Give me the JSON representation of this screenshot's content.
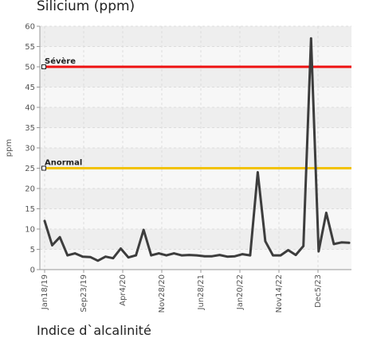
{
  "chart_data": {
    "type": "line",
    "title": "Silicium (ppm)",
    "ylabel": "ppm",
    "xlabel": "",
    "ylim": [
      0,
      60
    ],
    "yticks": [
      0,
      5,
      10,
      15,
      20,
      25,
      30,
      35,
      40,
      45,
      50,
      55,
      60
    ],
    "x_tick_labels": [
      "Jan18/19",
      "Sep23/19",
      "Apr4/20",
      "Nov28/20",
      "Jun28/21",
      "Jan20/22",
      "Nov14/22",
      "Dec5/23"
    ],
    "grid": true,
    "thresholds": [
      {
        "label": "Sévère",
        "value": 50,
        "color": "#ee1111"
      },
      {
        "label": "Anormal",
        "value": 25,
        "color": "#f2c200"
      }
    ],
    "series": [
      {
        "color": "#3d3d3d",
        "values": [
          12,
          6,
          8,
          3.5,
          4,
          3.2,
          3.1,
          2.2,
          3.2,
          2.8,
          5.2,
          3,
          3.5,
          9.8,
          3.5,
          4,
          3.5,
          4,
          3.5,
          3.6,
          3.5,
          3.3,
          3.3,
          3.6,
          3.2,
          3.3,
          3.8,
          3.5,
          24,
          7,
          3.5,
          3.5,
          4.8,
          3.6,
          5.8,
          57,
          4.5,
          14,
          6.3,
          6.7,
          6.6
        ]
      }
    ]
  },
  "next_chart_title": "Indice d`alcalinité"
}
